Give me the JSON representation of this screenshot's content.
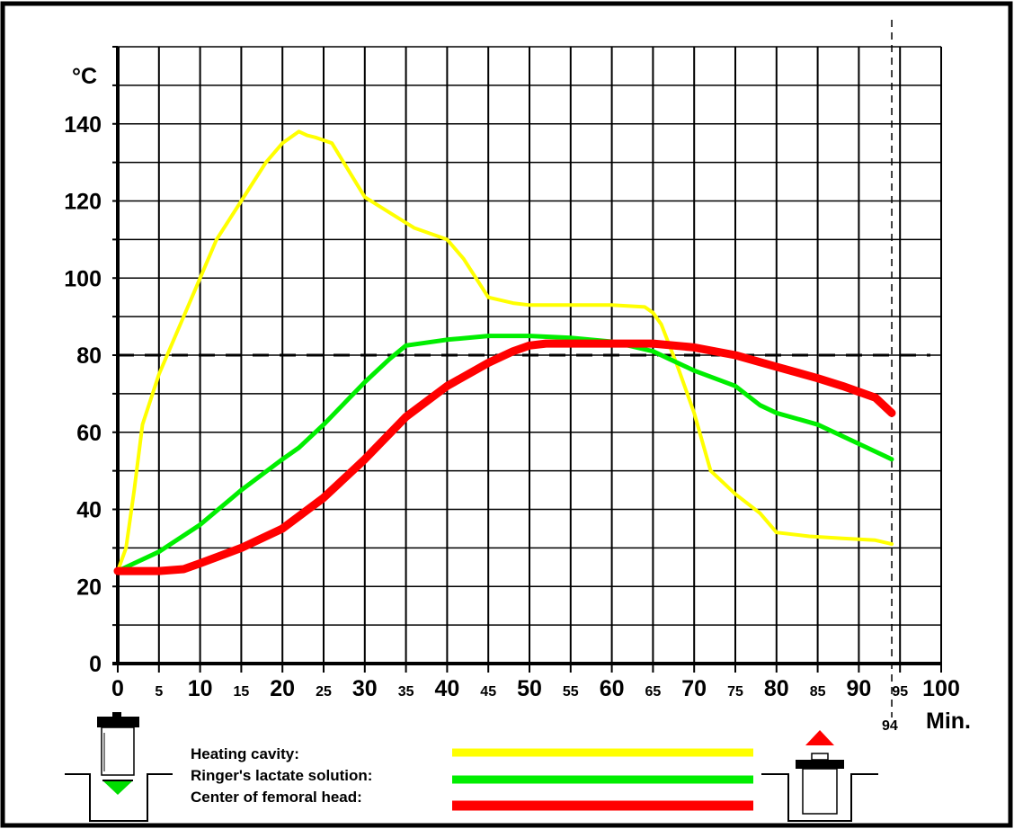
{
  "chart_data": {
    "type": "line",
    "xlabel": "Min.",
    "ylabel": "°C",
    "xlim": [
      0,
      100
    ],
    "ylim": [
      0,
      140
    ],
    "x_ticks_major": [
      0,
      10,
      20,
      30,
      40,
      50,
      60,
      70,
      80,
      90,
      100
    ],
    "x_ticks_minor": [
      5,
      15,
      25,
      35,
      45,
      55,
      65,
      75,
      85,
      95
    ],
    "y_ticks": [
      0,
      20,
      40,
      60,
      80,
      100,
      120,
      140
    ],
    "reference_line_y": 80,
    "end_marker_x": 94,
    "end_marker_label": "94",
    "grid": true,
    "legend_position": "bottom-center",
    "series": [
      {
        "name": "Heating cavity:",
        "color": "#ffff00",
        "points": [
          [
            0,
            24
          ],
          [
            1,
            30
          ],
          [
            2,
            45
          ],
          [
            3,
            62
          ],
          [
            5,
            75
          ],
          [
            8,
            90
          ],
          [
            10,
            100
          ],
          [
            12,
            110
          ],
          [
            15,
            120
          ],
          [
            18,
            130
          ],
          [
            20,
            135
          ],
          [
            22,
            138
          ],
          [
            23,
            137
          ],
          [
            24,
            136.5
          ],
          [
            26,
            135
          ],
          [
            28,
            128
          ],
          [
            30,
            121
          ],
          [
            33,
            117
          ],
          [
            36,
            113
          ],
          [
            40,
            110
          ],
          [
            42,
            105
          ],
          [
            45,
            95
          ],
          [
            48,
            93.5
          ],
          [
            50,
            93
          ],
          [
            55,
            93
          ],
          [
            60,
            93
          ],
          [
            64,
            92.5
          ],
          [
            65,
            91
          ],
          [
            66,
            88
          ],
          [
            68,
            77
          ],
          [
            70,
            65
          ],
          [
            72,
            50
          ],
          [
            75,
            44
          ],
          [
            78,
            39
          ],
          [
            80,
            34
          ],
          [
            84,
            33
          ],
          [
            88,
            32.5
          ],
          [
            92,
            32
          ],
          [
            94,
            31
          ]
        ]
      },
      {
        "name": "Ringer's lactate solution:",
        "color": "#00ee00",
        "points": [
          [
            0,
            24
          ],
          [
            2,
            26
          ],
          [
            5,
            29
          ],
          [
            10,
            36
          ],
          [
            15,
            45
          ],
          [
            20,
            53
          ],
          [
            22,
            56
          ],
          [
            25,
            62
          ],
          [
            30,
            73
          ],
          [
            33,
            79
          ],
          [
            35,
            82.5
          ],
          [
            40,
            84
          ],
          [
            45,
            85
          ],
          [
            50,
            85
          ],
          [
            55,
            84.5
          ],
          [
            60,
            83.5
          ],
          [
            65,
            81
          ],
          [
            67,
            79
          ],
          [
            70,
            76
          ],
          [
            75,
            72
          ],
          [
            78,
            67
          ],
          [
            80,
            65
          ],
          [
            85,
            62
          ],
          [
            90,
            57
          ],
          [
            94,
            53
          ]
        ]
      },
      {
        "name": "Center of femoral head:",
        "color": "#ff0000",
        "points": [
          [
            0,
            24
          ],
          [
            3,
            24
          ],
          [
            5,
            24
          ],
          [
            8,
            24.5
          ],
          [
            10,
            26
          ],
          [
            15,
            30
          ],
          [
            20,
            35
          ],
          [
            25,
            43
          ],
          [
            30,
            53
          ],
          [
            35,
            64
          ],
          [
            40,
            72
          ],
          [
            45,
            78
          ],
          [
            48,
            81
          ],
          [
            50,
            82.5
          ],
          [
            52,
            83
          ],
          [
            55,
            83
          ],
          [
            60,
            83
          ],
          [
            65,
            83
          ],
          [
            70,
            82
          ],
          [
            75,
            80
          ],
          [
            80,
            77
          ],
          [
            85,
            74
          ],
          [
            88,
            72
          ],
          [
            92,
            69
          ],
          [
            94,
            65
          ]
        ]
      }
    ]
  },
  "legend": {
    "items": [
      {
        "label": "Heating cavity:",
        "color": "#ffff00"
      },
      {
        "label": "Ringer's lactate solution:",
        "color": "#00ee00"
      },
      {
        "label": "Center of femoral head:",
        "color": "#ff0000"
      }
    ]
  },
  "icons": {
    "left": "syringe-into-container-icon",
    "right": "container-with-lid-lifting-icon",
    "left_arrow_color": "#00dd00",
    "right_arrow_color": "#ff0000"
  }
}
